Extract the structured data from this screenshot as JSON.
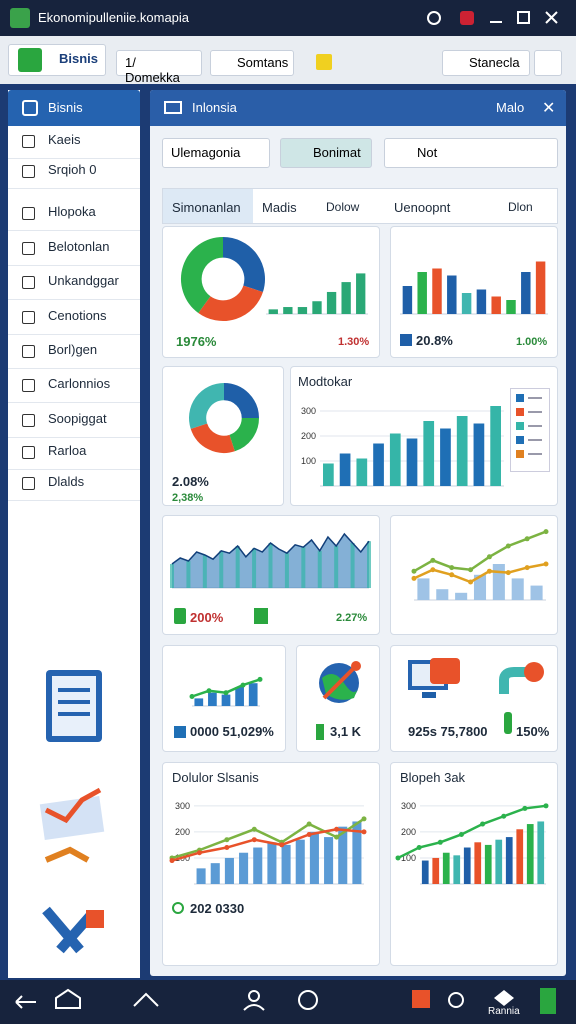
{
  "window": {
    "title": "Ekonomipulleniie.komapia"
  },
  "toolbar": {
    "brand": "Bisnis",
    "tab1": "1/ Domekka",
    "tab2": "Somtans",
    "search": "Stanecla"
  },
  "sidebar": {
    "header": "Bisnis",
    "items": [
      "Kaeis",
      "Srqioh 0",
      "Hlopoka",
      "Belotonlan",
      "Unkandggar",
      "Cenotions",
      "Borl)gen",
      "Carlonnios",
      "Soopiggat",
      "Rarloa",
      "Dlalds"
    ]
  },
  "panel": {
    "title": "Inlonsia",
    "action": "Malo",
    "filters": [
      "Ulemagonia",
      "Bonimat",
      "Not"
    ],
    "tabs": [
      "Simonanlan",
      "Madis",
      "Dolow",
      "Uenoopnt",
      "Dlon"
    ]
  },
  "cards": [
    {
      "stats": [
        "1976%",
        "1.30%"
      ],
      "charts": [
        {
          "type": "donut",
          "values": [
            30,
            30,
            40
          ],
          "colors": [
            "#1f5fa8",
            "#e8522a",
            "#2bb24c"
          ]
        },
        {
          "type": "bar",
          "values": [
            8,
            12,
            12,
            22,
            38,
            55,
            70
          ],
          "color": "#2aa876",
          "ylim": [
            0,
            100
          ]
        }
      ]
    },
    {
      "stats": [
        "20.8%",
        "1.00%"
      ],
      "charts": [
        {
          "type": "bar",
          "values": [
            40,
            60,
            65,
            55,
            30,
            35,
            25,
            20,
            60,
            75
          ],
          "colors": [
            "#1f5fa8",
            "#2bb24c",
            "#e8522a",
            "#1f5fa8",
            "#40b6b0",
            "#1f5fa8",
            "#e8522a",
            "#2bb24c",
            "#1f5fa8",
            "#e8522a"
          ],
          "ylim": [
            0,
            100
          ]
        }
      ]
    },
    {
      "stats": [
        "2.08%",
        "2,38%"
      ],
      "charts": [
        {
          "type": "donut",
          "values": [
            25,
            20,
            25,
            30
          ],
          "colors": [
            "#1f5fa8",
            "#2bb24c",
            "#e8522a",
            "#40b6b0"
          ]
        }
      ]
    },
    {
      "title": "Modtokar",
      "charts": [
        {
          "type": "bar",
          "values": [
            90,
            130,
            110,
            170,
            210,
            190,
            260,
            230,
            280,
            250,
            320
          ],
          "colors": [
            "#35b5a8",
            "#1f6fb5"
          ],
          "ylim": [
            0,
            360
          ],
          "yticks": [
            100,
            200,
            300
          ]
        }
      ]
    },
    {
      "stats": [
        "200%",
        "2.27%"
      ],
      "charts": [
        {
          "type": "area",
          "values": [
            40,
            50,
            45,
            60,
            55,
            48,
            62,
            58,
            70,
            52,
            66,
            60,
            75,
            65,
            58,
            72,
            68,
            80,
            62,
            85,
            70,
            90,
            75,
            60,
            78
          ],
          "color": "#1f6fb5",
          "ylim": [
            0,
            100
          ]
        }
      ]
    },
    {
      "charts": [
        {
          "type": "bar",
          "values": [
            30,
            15,
            10,
            35,
            50,
            30,
            20
          ],
          "color": "#9fc3e6",
          "ylim": [
            0,
            100
          ]
        },
        {
          "type": "line",
          "values": [
            40,
            55,
            45,
            42,
            60,
            75,
            85,
            95
          ],
          "color": "#7cb342",
          "ylim": [
            0,
            100
          ]
        },
        {
          "type": "line",
          "values": [
            30,
            42,
            35,
            25,
            40,
            38,
            45,
            50
          ],
          "color": "#e0a020",
          "ylim": [
            0,
            100
          ]
        }
      ]
    },
    {
      "stats": [
        "0000 51,029%"
      ],
      "charts": [
        {
          "type": "bar",
          "values": [
            20,
            35,
            30,
            50,
            60
          ],
          "color": "#2c7bc4",
          "ylim": [
            0,
            100
          ]
        },
        {
          "type": "line",
          "values": [
            25,
            40,
            35,
            55,
            70
          ],
          "color": "#2bb24c",
          "ylim": [
            0,
            100
          ]
        }
      ]
    },
    {
      "stats": [
        "3,1 K"
      ],
      "charts": []
    },
    {
      "stats": [
        "925s 75,7800",
        "150%"
      ],
      "charts": []
    },
    {
      "title": "Dolulor Slsanis",
      "stats": [
        "202 0330"
      ],
      "charts": [
        {
          "type": "bar",
          "values": [
            60,
            80,
            100,
            120,
            140,
            160,
            150,
            170,
            200,
            180,
            220,
            240
          ],
          "color": "#5b9bd5",
          "ylim": [
            0,
            330
          ],
          "yticks": [
            100,
            200,
            300
          ]
        },
        {
          "type": "line",
          "values": [
            100,
            130,
            170,
            210,
            160,
            230,
            180,
            250
          ],
          "color": "#7cb342",
          "ylim": [
            0,
            330
          ]
        },
        {
          "type": "line",
          "values": [
            90,
            120,
            140,
            170,
            150,
            190,
            210,
            200
          ],
          "color": "#e8522a",
          "ylim": [
            0,
            330
          ]
        }
      ]
    },
    {
      "title": "Blopeh 3ak",
      "charts": [
        {
          "type": "bar",
          "values": [
            90,
            100,
            120,
            110,
            140,
            160,
            150,
            170,
            180,
            210,
            230,
            240
          ],
          "colors": [
            "#1f5fa8",
            "#e8522a",
            "#2bb24c",
            "#40b6b0"
          ],
          "ylim": [
            0,
            330
          ],
          "yticks": [
            100,
            200,
            300
          ]
        },
        {
          "type": "line",
          "values": [
            100,
            140,
            160,
            190,
            230,
            260,
            290,
            300
          ],
          "color": "#2bb24c",
          "ylim": [
            0,
            330
          ]
        }
      ]
    }
  ],
  "bottom_nav": {
    "label": "Rannia"
  }
}
